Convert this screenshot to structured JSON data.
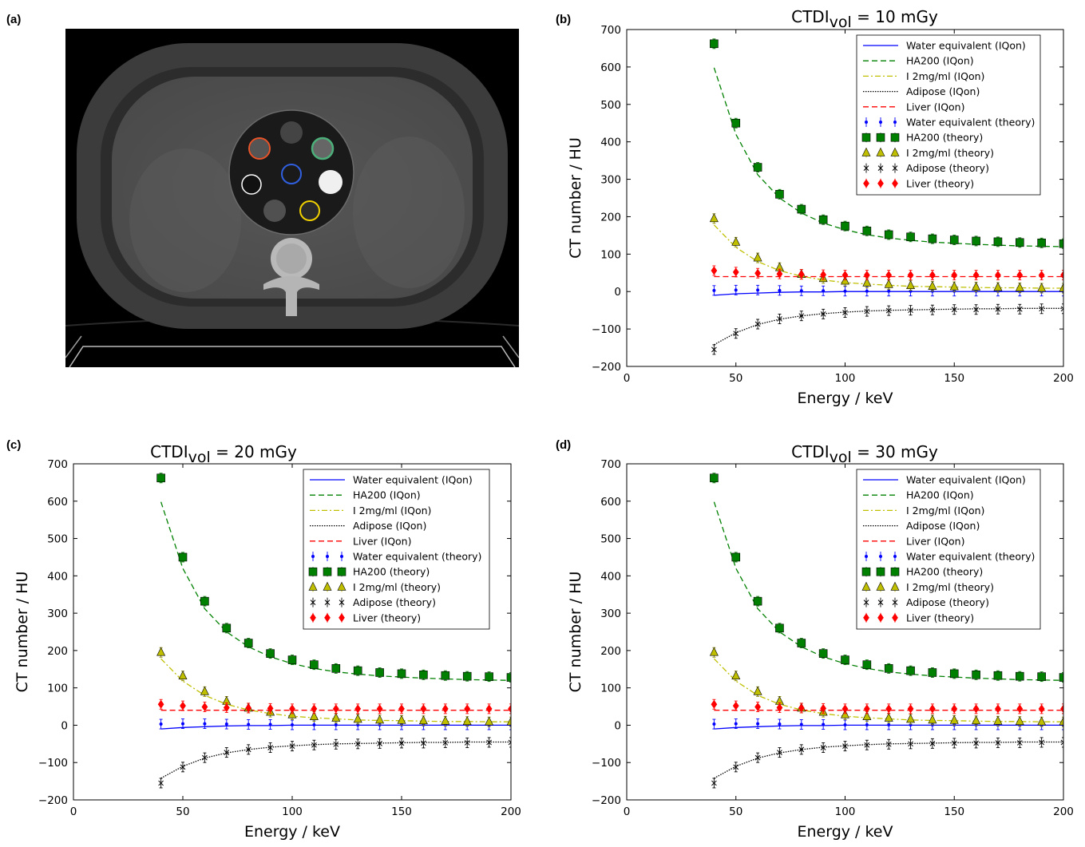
{
  "panel_labels": [
    "(a)",
    "(b)",
    "(c)",
    "(d)"
  ],
  "colors": {
    "water": "#0000ff",
    "ha200": "#008000",
    "iodine": "#bfbf00",
    "adipose": "#000000",
    "liver": "#ff0000",
    "roi_orange": "#e8542a",
    "roi_green": "#4caf7a",
    "roi_blue": "#3060e0",
    "roi_white": "#ffffff",
    "roi_yellow": "#f0d000"
  },
  "chart_data": [
    {
      "type": "line",
      "title_main": "CTDI",
      "title_sub": "vol",
      "title_rest": " = 10 mGy",
      "xlabel": "Energy / keV",
      "ylabel": "CT number / HU",
      "xlim": [
        0,
        200
      ],
      "ylim": [
        -200,
        700
      ],
      "xticks": [
        "0",
        "50",
        "100",
        "150",
        "200"
      ],
      "yticks": [
        "−200",
        "−100",
        "0",
        "100",
        "200",
        "300",
        "400",
        "500",
        "600",
        "700"
      ],
      "legend_position": "top-right",
      "x": [
        40,
        50,
        60,
        70,
        80,
        90,
        100,
        110,
        120,
        130,
        140,
        150,
        160,
        170,
        180,
        190,
        200
      ],
      "series": [
        {
          "name": "Water equivalent (IQon)",
          "kind": "line",
          "style": "solid",
          "color": "#0000ff",
          "values": [
            -10,
            -6,
            -4,
            -2,
            -1,
            -1,
            0,
            0,
            0,
            0,
            0,
            0,
            0,
            0,
            0,
            0,
            0
          ]
        },
        {
          "name": "HA200 (IQon)",
          "kind": "line",
          "style": "dashed",
          "color": "#008000",
          "values": [
            598,
            420,
            312,
            250,
            210,
            183,
            165,
            152,
            143,
            137,
            132,
            129,
            126,
            124,
            122,
            121,
            120
          ]
        },
        {
          "name": "I 2mg/ml (IQon)",
          "kind": "line",
          "style": "dashdot",
          "color": "#bfbf00",
          "values": [
            178,
            118,
            80,
            56,
            41,
            31,
            24,
            20,
            17,
            14,
            13,
            12,
            11,
            10,
            10,
            9,
            9
          ]
        },
        {
          "name": "Adipose (IQon)",
          "kind": "line",
          "style": "dotted",
          "color": "#000000",
          "values": [
            -142,
            -110,
            -88,
            -74,
            -65,
            -59,
            -55,
            -52,
            -50,
            -49,
            -48,
            -47,
            -46,
            -46,
            -45,
            -45,
            -45
          ]
        },
        {
          "name": "Liver (IQon)",
          "kind": "line",
          "style": "dashed",
          "color": "#ff0000",
          "values": [
            40,
            40,
            40,
            40,
            40,
            40,
            40,
            40,
            40,
            40,
            40,
            40,
            40,
            40,
            40,
            40,
            40
          ]
        },
        {
          "name": "Water equivalent (theory)",
          "kind": "marker",
          "marker": "point",
          "color": "#0000ff",
          "values": [
            3,
            4,
            4,
            3,
            2,
            2,
            1,
            1,
            1,
            1,
            1,
            1,
            1,
            1,
            1,
            1,
            1
          ]
        },
        {
          "name": "HA200 (theory)",
          "kind": "marker",
          "marker": "square",
          "color": "#008000",
          "values": [
            662,
            450,
            332,
            260,
            220,
            192,
            175,
            162,
            152,
            146,
            141,
            138,
            135,
            133,
            131,
            130,
            128
          ]
        },
        {
          "name": "I 2mg/ml (theory)",
          "kind": "marker",
          "marker": "triangle",
          "color": "#bfbf00",
          "values": [
            195,
            132,
            90,
            64,
            46,
            35,
            28,
            23,
            19,
            16,
            14,
            13,
            12,
            11,
            10,
            9,
            9
          ]
        },
        {
          "name": "Adipose (theory)",
          "kind": "marker",
          "marker": "x",
          "color": "#000000",
          "values": [
            -155,
            -112,
            -87,
            -73,
            -65,
            -60,
            -56,
            -53,
            -51,
            -50,
            -49,
            -48,
            -48,
            -47,
            -47,
            -46,
            -46
          ]
        },
        {
          "name": "Liver (theory)",
          "kind": "marker",
          "marker": "diamond",
          "color": "#ff0000",
          "values": [
            56,
            52,
            49,
            47,
            46,
            45,
            44,
            44,
            44,
            44,
            44,
            44,
            44,
            44,
            44,
            44,
            44
          ]
        }
      ]
    },
    {
      "type": "line",
      "title_main": "CTDI",
      "title_sub": "vol",
      "title_rest": " = 20 mGy",
      "xlabel": "Energy / keV",
      "ylabel": "CT number / HU",
      "xlim": [
        0,
        200
      ],
      "ylim": [
        -200,
        700
      ],
      "xticks": [
        "0",
        "50",
        "100",
        "150",
        "200"
      ],
      "yticks": [
        "−200",
        "−100",
        "0",
        "100",
        "200",
        "300",
        "400",
        "500",
        "600",
        "700"
      ],
      "legend_position": "top-right",
      "x": [
        40,
        50,
        60,
        70,
        80,
        90,
        100,
        110,
        120,
        130,
        140,
        150,
        160,
        170,
        180,
        190,
        200
      ],
      "series": [
        {
          "name": "Water equivalent (IQon)",
          "kind": "line",
          "style": "solid",
          "color": "#0000ff",
          "values": [
            -10,
            -6,
            -4,
            -2,
            -1,
            -1,
            0,
            0,
            0,
            0,
            0,
            0,
            0,
            0,
            0,
            0,
            0
          ]
        },
        {
          "name": "HA200 (IQon)",
          "kind": "line",
          "style": "dashed",
          "color": "#008000",
          "values": [
            598,
            420,
            312,
            250,
            210,
            183,
            165,
            152,
            143,
            137,
            132,
            129,
            126,
            124,
            122,
            121,
            120
          ]
        },
        {
          "name": "I 2mg/ml (IQon)",
          "kind": "line",
          "style": "dashdot",
          "color": "#bfbf00",
          "values": [
            178,
            118,
            80,
            56,
            41,
            31,
            24,
            20,
            17,
            14,
            13,
            12,
            11,
            10,
            10,
            9,
            9
          ]
        },
        {
          "name": "Adipose (IQon)",
          "kind": "line",
          "style": "dotted",
          "color": "#000000",
          "values": [
            -142,
            -110,
            -88,
            -74,
            -65,
            -59,
            -55,
            -52,
            -50,
            -49,
            -48,
            -47,
            -46,
            -46,
            -45,
            -45,
            -45
          ]
        },
        {
          "name": "Liver (IQon)",
          "kind": "line",
          "style": "dashed",
          "color": "#ff0000",
          "values": [
            40,
            40,
            40,
            40,
            40,
            40,
            40,
            40,
            40,
            40,
            40,
            40,
            40,
            40,
            40,
            40,
            40
          ]
        },
        {
          "name": "Water equivalent (theory)",
          "kind": "marker",
          "marker": "point",
          "color": "#0000ff",
          "values": [
            3,
            4,
            4,
            3,
            2,
            2,
            1,
            1,
            1,
            1,
            1,
            1,
            1,
            1,
            1,
            1,
            1
          ]
        },
        {
          "name": "HA200 (theory)",
          "kind": "marker",
          "marker": "square",
          "color": "#008000",
          "values": [
            662,
            450,
            332,
            260,
            220,
            192,
            175,
            162,
            152,
            146,
            141,
            138,
            135,
            133,
            131,
            130,
            128
          ]
        },
        {
          "name": "I 2mg/ml (theory)",
          "kind": "marker",
          "marker": "triangle",
          "color": "#bfbf00",
          "values": [
            195,
            132,
            90,
            64,
            46,
            35,
            28,
            23,
            19,
            16,
            14,
            13,
            12,
            11,
            10,
            9,
            9
          ]
        },
        {
          "name": "Adipose (theory)",
          "kind": "marker",
          "marker": "x",
          "color": "#000000",
          "values": [
            -155,
            -112,
            -87,
            -73,
            -65,
            -60,
            -56,
            -53,
            -51,
            -50,
            -49,
            -48,
            -48,
            -47,
            -47,
            -46,
            -46
          ]
        },
        {
          "name": "Liver (theory)",
          "kind": "marker",
          "marker": "diamond",
          "color": "#ff0000",
          "values": [
            56,
            52,
            49,
            47,
            46,
            45,
            44,
            44,
            44,
            44,
            44,
            44,
            44,
            44,
            44,
            44,
            44
          ]
        }
      ]
    },
    {
      "type": "line",
      "title_main": "CTDI",
      "title_sub": "vol",
      "title_rest": " = 30 mGy",
      "xlabel": "Energy / keV",
      "ylabel": "CT number / HU",
      "xlim": [
        0,
        200
      ],
      "ylim": [
        -200,
        700
      ],
      "xticks": [
        "0",
        "50",
        "100",
        "150",
        "200"
      ],
      "yticks": [
        "−200",
        "−100",
        "0",
        "100",
        "200",
        "300",
        "400",
        "500",
        "600",
        "700"
      ],
      "legend_position": "top-right",
      "x": [
        40,
        50,
        60,
        70,
        80,
        90,
        100,
        110,
        120,
        130,
        140,
        150,
        160,
        170,
        180,
        190,
        200
      ],
      "series": [
        {
          "name": "Water equivalent (IQon)",
          "kind": "line",
          "style": "solid",
          "color": "#0000ff",
          "values": [
            -10,
            -6,
            -4,
            -2,
            -1,
            -1,
            0,
            0,
            0,
            0,
            0,
            0,
            0,
            0,
            0,
            0,
            0
          ]
        },
        {
          "name": "HA200 (IQon)",
          "kind": "line",
          "style": "dashed",
          "color": "#008000",
          "values": [
            598,
            420,
            312,
            250,
            210,
            183,
            165,
            152,
            143,
            137,
            132,
            129,
            126,
            124,
            122,
            121,
            120
          ]
        },
        {
          "name": "I 2mg/ml (IQon)",
          "kind": "line",
          "style": "dashdot",
          "color": "#bfbf00",
          "values": [
            178,
            118,
            80,
            56,
            41,
            31,
            24,
            20,
            17,
            14,
            13,
            12,
            11,
            10,
            10,
            9,
            9
          ]
        },
        {
          "name": "Adipose (IQon)",
          "kind": "line",
          "style": "dotted",
          "color": "#000000",
          "values": [
            -142,
            -110,
            -88,
            -74,
            -65,
            -59,
            -55,
            -52,
            -50,
            -49,
            -48,
            -47,
            -46,
            -46,
            -45,
            -45,
            -45
          ]
        },
        {
          "name": "Liver (IQon)",
          "kind": "line",
          "style": "dashed",
          "color": "#ff0000",
          "values": [
            40,
            40,
            40,
            40,
            40,
            40,
            40,
            40,
            40,
            40,
            40,
            40,
            40,
            40,
            40,
            40,
            40
          ]
        },
        {
          "name": "Water equivalent (theory)",
          "kind": "marker",
          "marker": "point",
          "color": "#0000ff",
          "values": [
            3,
            4,
            4,
            3,
            2,
            2,
            1,
            1,
            1,
            1,
            1,
            1,
            1,
            1,
            1,
            1,
            1
          ]
        },
        {
          "name": "HA200 (theory)",
          "kind": "marker",
          "marker": "square",
          "color": "#008000",
          "values": [
            662,
            450,
            332,
            260,
            220,
            192,
            175,
            162,
            152,
            146,
            141,
            138,
            135,
            133,
            131,
            130,
            128
          ]
        },
        {
          "name": "I 2mg/ml (theory)",
          "kind": "marker",
          "marker": "triangle",
          "color": "#bfbf00",
          "values": [
            195,
            132,
            90,
            64,
            46,
            35,
            28,
            23,
            19,
            16,
            14,
            13,
            12,
            11,
            10,
            9,
            9
          ]
        },
        {
          "name": "Adipose (theory)",
          "kind": "marker",
          "marker": "x",
          "color": "#000000",
          "values": [
            -155,
            -112,
            -87,
            -73,
            -65,
            -60,
            -56,
            -53,
            -51,
            -50,
            -49,
            -48,
            -48,
            -47,
            -47,
            -46,
            -46
          ]
        },
        {
          "name": "Liver (theory)",
          "kind": "marker",
          "marker": "diamond",
          "color": "#ff0000",
          "values": [
            56,
            52,
            49,
            47,
            46,
            45,
            44,
            44,
            44,
            44,
            44,
            44,
            44,
            44,
            44,
            44,
            44
          ]
        }
      ]
    }
  ]
}
